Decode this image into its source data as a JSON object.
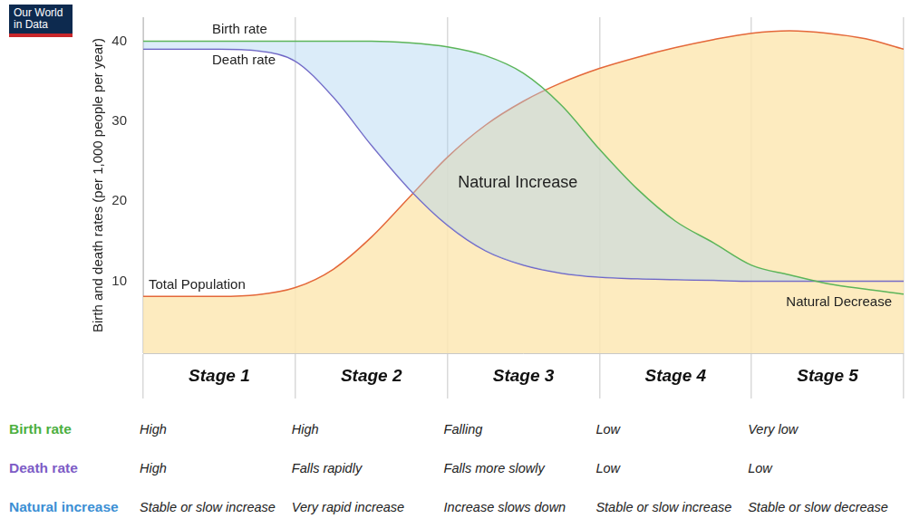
{
  "logo": "Our World in Data",
  "chart_data": {
    "type": "line",
    "y_label": "Birth and death rates (per 1,000 people per year)",
    "categories": [
      null,
      null,
      "Stage 1",
      null,
      null,
      null,
      "Stage 2",
      null,
      null,
      null,
      "Stage 3",
      null,
      null,
      null,
      "Stage 4",
      null,
      null,
      null,
      "Stage 5",
      null,
      null
    ],
    "series": [
      {
        "name": "Birth rate",
        "color": "#5cb55a",
        "values": [
          40,
          40,
          40,
          40,
          40,
          40,
          40,
          39.8,
          39.3,
          38.2,
          36,
          32,
          26.5,
          21.5,
          17.5,
          14.8,
          12,
          10.8,
          9.7,
          9.0,
          8.4
        ]
      },
      {
        "name": "Death rate",
        "color": "#6f62c4",
        "values": [
          39,
          39,
          39,
          38.8,
          37.5,
          33,
          27,
          21.5,
          17,
          13.8,
          12,
          11,
          10.5,
          10.3,
          10.2,
          10.1,
          10,
          10,
          10,
          10,
          10
        ]
      },
      {
        "name": "Total Population",
        "color": "#e4683a",
        "type": "area",
        "values": [
          8.1,
          8.1,
          8.1,
          8.3,
          9.2,
          11.5,
          15.5,
          20.5,
          25.5,
          29.5,
          32.5,
          34.8,
          36.6,
          38,
          39.2,
          40.2,
          41,
          41.3,
          41,
          40.3,
          39
        ]
      }
    ],
    "ylim": [
      1,
      43
    ],
    "yticks": [
      10,
      20,
      30,
      40
    ],
    "grid": "x",
    "annotations": [
      {
        "text": "Natural Increase",
        "x": 9.85,
        "y": 22.3
      },
      {
        "text": "Natural Decrease",
        "x": 18.3,
        "y": 7.3
      }
    ]
  },
  "table": {
    "rows": [
      {
        "label": "Birth rate",
        "color": "#4caf3f",
        "cells": [
          "High",
          "High",
          "Falling",
          "Low",
          "Very low"
        ]
      },
      {
        "label": "Death rate",
        "color": "#7d5cc6",
        "cells": [
          "High",
          "Falls rapidly",
          "Falls more slowly",
          "Low",
          "Low"
        ]
      },
      {
        "label": "Natural increase",
        "color": "#3b8fd4",
        "cells": [
          "Stable or slow increase",
          "Very rapid increase",
          "Increase slows down",
          "Stable or slow increase",
          "Stable or slow decrease"
        ]
      }
    ]
  }
}
